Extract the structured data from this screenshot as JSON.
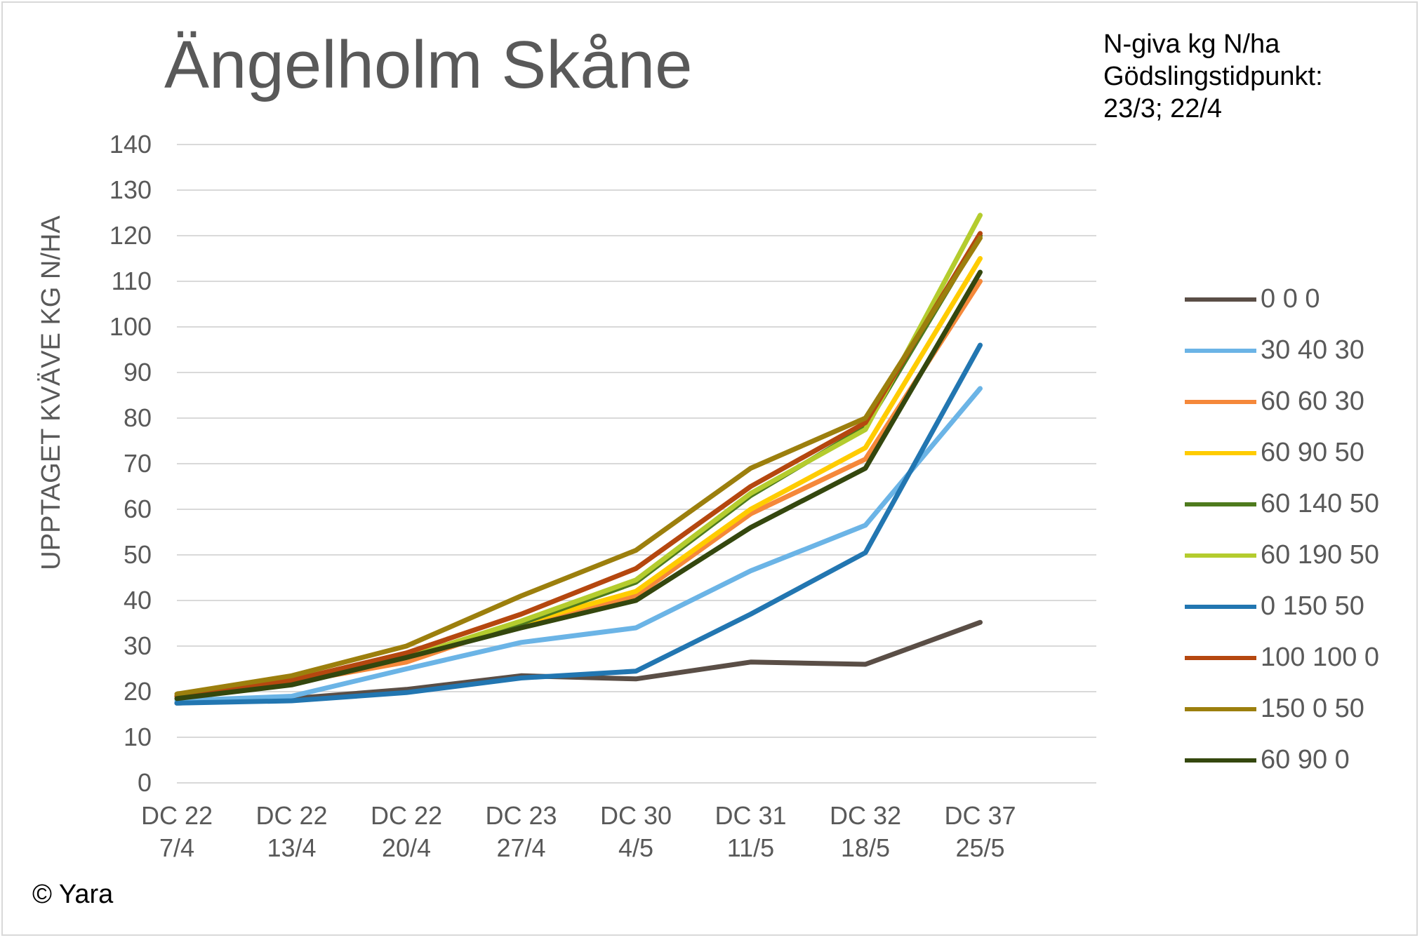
{
  "chart_data": {
    "type": "line",
    "title": "Ängelholm Skåne",
    "ylabel": "UPPTAGET KVÄVE KG N/HA",
    "xlabel": "",
    "ylim": [
      0,
      140
    ],
    "yticks": [
      0,
      10,
      20,
      30,
      40,
      50,
      60,
      70,
      80,
      90,
      100,
      110,
      120,
      130,
      140
    ],
    "grid": "horizontal",
    "legend_position": "right",
    "categories": [
      {
        "line1": "DC 22",
        "line2": "7/4"
      },
      {
        "line1": "DC 22",
        "line2": "13/4"
      },
      {
        "line1": "DC 22",
        "line2": "20/4"
      },
      {
        "line1": "DC 23",
        "line2": "27/4"
      },
      {
        "line1": "DC 30",
        "line2": "4/5"
      },
      {
        "line1": "DC 31",
        "line2": "11/5"
      },
      {
        "line1": "DC 32",
        "line2": "18/5"
      },
      {
        "line1": "DC 37",
        "line2": "25/5"
      }
    ],
    "series": [
      {
        "name": "0 0 0",
        "color": "#5a4e46",
        "values": [
          17.5,
          18.5,
          20.5,
          23.5,
          22.8,
          26.5,
          26,
          35.2
        ]
      },
      {
        "name": "30 40 30",
        "color": "#6bb4e6",
        "values": [
          18,
          19,
          25,
          30.8,
          34,
          46.5,
          56.5,
          86.5
        ]
      },
      {
        "name": "60 60 30",
        "color": "#f5883a",
        "values": [
          19,
          22,
          26.5,
          35,
          41,
          59,
          71,
          110
        ]
      },
      {
        "name": "60 90 50",
        "color": "#ffcc00",
        "values": [
          19,
          22,
          27.5,
          35,
          42,
          60,
          73.5,
          115
        ]
      },
      {
        "name": "60 140 50",
        "color": "#4e7b1e",
        "values": [
          19,
          22,
          27.5,
          35,
          44,
          63,
          78,
          120
        ]
      },
      {
        "name": "60 190 50",
        "color": "#b4cc2e",
        "values": [
          19,
          22,
          27.5,
          35.5,
          44.5,
          63.5,
          77.5,
          124.5
        ]
      },
      {
        "name": "0 150 50",
        "color": "#2276b1",
        "values": [
          17.5,
          18,
          19.8,
          23,
          24.5,
          37,
          50.5,
          96
        ]
      },
      {
        "name": "100 100 0",
        "color": "#b5470f",
        "values": [
          19,
          22.5,
          28.5,
          37,
          47,
          65,
          79,
          120.5
        ]
      },
      {
        "name": "150 0 50",
        "color": "#9c7f0d",
        "values": [
          19.5,
          23.5,
          30,
          41,
          51,
          69,
          80,
          119.5
        ]
      },
      {
        "name": "60 90 0",
        "color": "#34470e",
        "values": [
          18.5,
          21.5,
          27.5,
          34,
          40,
          56,
          69,
          112
        ]
      }
    ]
  },
  "header": {
    "note_line1": "N-giva kg N/ha",
    "note_line2": "Gödslingstidpunkt:",
    "note_line3": "23/3; 22/4"
  },
  "footer": {
    "copyright": "© Yara"
  }
}
